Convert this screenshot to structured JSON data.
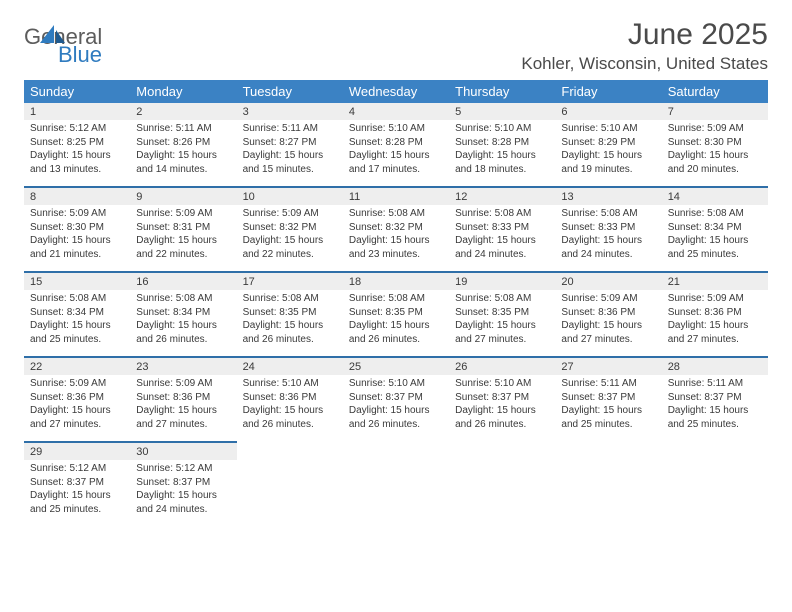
{
  "brand": {
    "general": "General",
    "blue": "Blue"
  },
  "title": "June 2025",
  "location": "Kohler, Wisconsin, United States",
  "colors": {
    "header_bg": "#3b82c4",
    "daynum_bg": "#eeeeee",
    "week_sep": "#2f6fa8",
    "text": "#3a3a3a"
  },
  "day_headers": [
    "Sunday",
    "Monday",
    "Tuesday",
    "Wednesday",
    "Thursday",
    "Friday",
    "Saturday"
  ],
  "weeks": [
    [
      {
        "n": "1",
        "sr": "5:12 AM",
        "ss": "8:25 PM",
        "dl": "15 hours and 13 minutes."
      },
      {
        "n": "2",
        "sr": "5:11 AM",
        "ss": "8:26 PM",
        "dl": "15 hours and 14 minutes."
      },
      {
        "n": "3",
        "sr": "5:11 AM",
        "ss": "8:27 PM",
        "dl": "15 hours and 15 minutes."
      },
      {
        "n": "4",
        "sr": "5:10 AM",
        "ss": "8:28 PM",
        "dl": "15 hours and 17 minutes."
      },
      {
        "n": "5",
        "sr": "5:10 AM",
        "ss": "8:28 PM",
        "dl": "15 hours and 18 minutes."
      },
      {
        "n": "6",
        "sr": "5:10 AM",
        "ss": "8:29 PM",
        "dl": "15 hours and 19 minutes."
      },
      {
        "n": "7",
        "sr": "5:09 AM",
        "ss": "8:30 PM",
        "dl": "15 hours and 20 minutes."
      }
    ],
    [
      {
        "n": "8",
        "sr": "5:09 AM",
        "ss": "8:30 PM",
        "dl": "15 hours and 21 minutes."
      },
      {
        "n": "9",
        "sr": "5:09 AM",
        "ss": "8:31 PM",
        "dl": "15 hours and 22 minutes."
      },
      {
        "n": "10",
        "sr": "5:09 AM",
        "ss": "8:32 PM",
        "dl": "15 hours and 22 minutes."
      },
      {
        "n": "11",
        "sr": "5:08 AM",
        "ss": "8:32 PM",
        "dl": "15 hours and 23 minutes."
      },
      {
        "n": "12",
        "sr": "5:08 AM",
        "ss": "8:33 PM",
        "dl": "15 hours and 24 minutes."
      },
      {
        "n": "13",
        "sr": "5:08 AM",
        "ss": "8:33 PM",
        "dl": "15 hours and 24 minutes."
      },
      {
        "n": "14",
        "sr": "5:08 AM",
        "ss": "8:34 PM",
        "dl": "15 hours and 25 minutes."
      }
    ],
    [
      {
        "n": "15",
        "sr": "5:08 AM",
        "ss": "8:34 PM",
        "dl": "15 hours and 25 minutes."
      },
      {
        "n": "16",
        "sr": "5:08 AM",
        "ss": "8:34 PM",
        "dl": "15 hours and 26 minutes."
      },
      {
        "n": "17",
        "sr": "5:08 AM",
        "ss": "8:35 PM",
        "dl": "15 hours and 26 minutes."
      },
      {
        "n": "18",
        "sr": "5:08 AM",
        "ss": "8:35 PM",
        "dl": "15 hours and 26 minutes."
      },
      {
        "n": "19",
        "sr": "5:08 AM",
        "ss": "8:35 PM",
        "dl": "15 hours and 27 minutes."
      },
      {
        "n": "20",
        "sr": "5:09 AM",
        "ss": "8:36 PM",
        "dl": "15 hours and 27 minutes."
      },
      {
        "n": "21",
        "sr": "5:09 AM",
        "ss": "8:36 PM",
        "dl": "15 hours and 27 minutes."
      }
    ],
    [
      {
        "n": "22",
        "sr": "5:09 AM",
        "ss": "8:36 PM",
        "dl": "15 hours and 27 minutes."
      },
      {
        "n": "23",
        "sr": "5:09 AM",
        "ss": "8:36 PM",
        "dl": "15 hours and 27 minutes."
      },
      {
        "n": "24",
        "sr": "5:10 AM",
        "ss": "8:36 PM",
        "dl": "15 hours and 26 minutes."
      },
      {
        "n": "25",
        "sr": "5:10 AM",
        "ss": "8:37 PM",
        "dl": "15 hours and 26 minutes."
      },
      {
        "n": "26",
        "sr": "5:10 AM",
        "ss": "8:37 PM",
        "dl": "15 hours and 26 minutes."
      },
      {
        "n": "27",
        "sr": "5:11 AM",
        "ss": "8:37 PM",
        "dl": "15 hours and 25 minutes."
      },
      {
        "n": "28",
        "sr": "5:11 AM",
        "ss": "8:37 PM",
        "dl": "15 hours and 25 minutes."
      }
    ],
    [
      {
        "n": "29",
        "sr": "5:12 AM",
        "ss": "8:37 PM",
        "dl": "15 hours and 25 minutes."
      },
      {
        "n": "30",
        "sr": "5:12 AM",
        "ss": "8:37 PM",
        "dl": "15 hours and 24 minutes."
      },
      null,
      null,
      null,
      null,
      null
    ]
  ],
  "labels": {
    "sunrise": "Sunrise: ",
    "sunset": "Sunset: ",
    "daylight": "Daylight: "
  }
}
